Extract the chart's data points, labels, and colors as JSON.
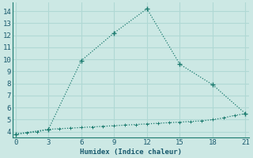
{
  "xlabel": "Humidex (Indice chaleur)",
  "line1_x": [
    0,
    3,
    6,
    9,
    12,
    15,
    18,
    21
  ],
  "line1_y": [
    3.8,
    4.2,
    9.9,
    12.2,
    14.2,
    9.6,
    7.9,
    5.5
  ],
  "line2_x": [
    0,
    1,
    2,
    3,
    4,
    5,
    6,
    7,
    8,
    9,
    10,
    11,
    12,
    13,
    14,
    15,
    16,
    17,
    18,
    19,
    20,
    21
  ],
  "line2_y": [
    3.8,
    3.9,
    4.0,
    4.2,
    4.25,
    4.3,
    4.35,
    4.4,
    4.45,
    4.5,
    4.55,
    4.6,
    4.65,
    4.7,
    4.75,
    4.8,
    4.85,
    4.9,
    5.0,
    5.15,
    5.35,
    5.5
  ],
  "line_color": "#1a7a6e",
  "bg_color": "#cce8e4",
  "grid_color": "#b0d8d4",
  "xlim": [
    -0.3,
    21.3
  ],
  "ylim": [
    3.5,
    14.7
  ],
  "xticks": [
    0,
    3,
    6,
    9,
    12,
    15,
    18,
    21
  ],
  "yticks": [
    4,
    5,
    6,
    7,
    8,
    9,
    10,
    11,
    12,
    13,
    14
  ]
}
